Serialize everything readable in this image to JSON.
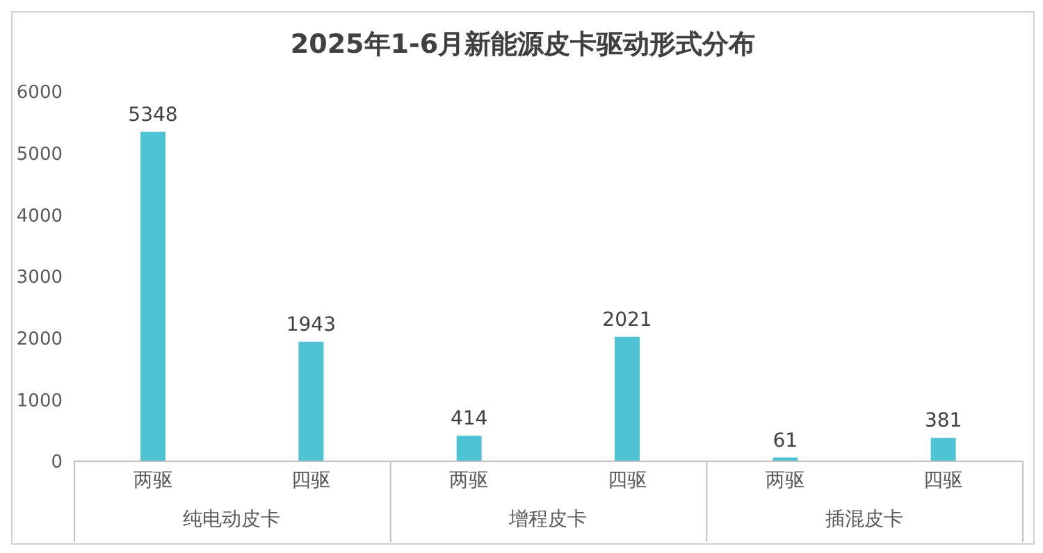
{
  "chart_data": {
    "type": "bar",
    "title": "2025年1-6月新能源皮卡驱动形式分布",
    "categories": [
      "两驱",
      "四驱",
      "两驱",
      "四驱",
      "两驱",
      "四驱"
    ],
    "values": [
      5348,
      1943,
      414,
      2021,
      61,
      381
    ],
    "color": "#4ec3d3",
    "ylim": [
      0,
      6000
    ],
    "yticks": [
      0,
      1000,
      2000,
      3000,
      4000,
      5000,
      6000
    ],
    "grid": false,
    "legend": false,
    "data_labels": true,
    "annotations": [
      "纯电动皮卡",
      "增程皮卡",
      "插混皮卡"
    ]
  }
}
